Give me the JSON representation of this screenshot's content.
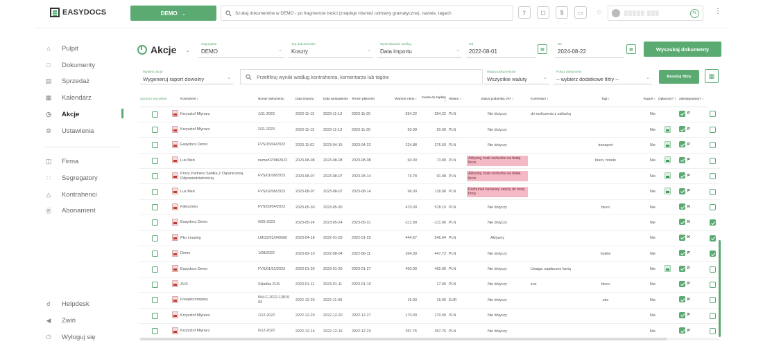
{
  "app": {
    "logo_text": "EASYDOCS"
  },
  "topbar": {
    "company_button": "DEMO",
    "search_placeholder": "Szukaj dokumentów w DEMO - po fragmencie treści (znajduje również odmiany gramatyczne), nazwie, tagach",
    "user_name": "▒▒▒▒▒ ▒▒▒",
    "user_initials": "PL"
  },
  "sidebar": {
    "items": [
      {
        "label": "Pulpit",
        "icon": "home-icon"
      },
      {
        "label": "Dokumenty",
        "icon": "folder-icon"
      },
      {
        "label": "Sprzedaż",
        "icon": "receipt-icon"
      },
      {
        "label": "Kalendarz",
        "icon": "calendar-icon"
      },
      {
        "label": "Akcje",
        "icon": "clock-icon"
      },
      {
        "label": "Ustawienia",
        "icon": "gear-icon"
      },
      {
        "label": "Firma",
        "icon": "building-icon"
      },
      {
        "label": "Segregatory",
        "icon": "grid-dots-icon"
      },
      {
        "label": "Kontrahenci",
        "icon": "people-icon"
      },
      {
        "label": "Abonament",
        "icon": "dollar-icon"
      },
      {
        "label": "Helpdesk",
        "icon": "headset-icon"
      },
      {
        "label": "Zwiń",
        "icon": "collapse-icon"
      },
      {
        "label": "Wyloguj się",
        "icon": "power-icon"
      }
    ]
  },
  "header": {
    "title": "Akcje",
    "segregator": {
      "label": "Segregator",
      "value": "DEMO"
    },
    "doc_type": {
      "label": "Typ dokumentów",
      "value": "Koszty"
    },
    "search_by": {
      "label": "Wyszukiwanie według",
      "value": "Data importu"
    },
    "date_from": {
      "label": "Od",
      "value": "2022-08-01"
    },
    "date_to": {
      "label": "Do",
      "value": "2024-08-22"
    },
    "search_button": "Wyszukaj dokumenty"
  },
  "filters": {
    "action": {
      "label": "Wybierz akcję",
      "value": "Wygeneruj raport dowolny"
    },
    "filter_placeholder": "Przefiltruj wyniki według kontrahenta, komentarza lub tagów",
    "currency": {
      "label": "Waluta dokumentów",
      "value": "Wszystkie waluty"
    },
    "show_docs": {
      "label": "Pokaż dokumenty",
      "value": "-- wybierz dodatkowe filtry --"
    },
    "reset_button": "Resetuj filtry"
  },
  "table": {
    "headers": {
      "select_all": "Zaznacz wszystkie",
      "contractor": "Kontrahent ↕",
      "doc_number": "Numer dokumentu",
      "import_date": "Data importu",
      "issue_date": "Data wystawienia",
      "due_date": "Termin płatności",
      "net": "Wartość netto ↕",
      "to_pay": "Kwota do zapłaty ↕",
      "currency": "Waluta ↕",
      "vat_status": "Status podatnika VAT ↕",
      "comment": "Komentarz ↕",
      "tags": "Tagi ↕",
      "report": "Raport ↕",
      "paid": "Opłacony? ↕",
      "booked": "Zaksięgowany? ↕"
    },
    "rows": [
      {
        "contractor": "Krzysztof Młynarz",
        "number": "1/11-2023",
        "imported": "2023-11-13",
        "issued": "2023-11-13",
        "due": "2023-11-20",
        "net": "-254.22",
        "gross": "-254.22",
        "currency": "PLN",
        "vat": "Nie dotyczy",
        "vat_alert": false,
        "comment": "do rozliczenia z zaliczką",
        "tags": "",
        "report": "Nie",
        "report_icon": false,
        "paid": "P",
        "booked": false
      },
      {
        "contractor": "Krzysztof Młynarz",
        "number": "2/11-2023",
        "imported": "2023-11-13",
        "issued": "2023-11-13",
        "due": "2023-11-20",
        "net": "50.09",
        "gross": "50.09",
        "currency": "PLN",
        "vat": "Nie dotyczy",
        "vat_alert": false,
        "comment": "",
        "tags": "",
        "report": "Nie",
        "report_icon": true,
        "paid": "P",
        "booked": false
      },
      {
        "contractor": "Easydocs Demo",
        "number": "FVS/15/04/2023",
        "imported": "2023-11-02",
        "issued": "2023-04-15",
        "due": "2023-04-22",
        "net": "224.88",
        "gross": "276.60",
        "currency": "PLN",
        "vat": "Nie dotyczy",
        "vat_alert": false,
        "comment": "",
        "tags": "transport",
        "report": "Nie",
        "report_icon": true,
        "paid": "P",
        "booked": false
      },
      {
        "contractor": "Lux Med",
        "number": "numer07/08/2023",
        "imported": "2023-08-08",
        "issued": "2023-08-08",
        "due": "2023-08-08",
        "net": "60.00",
        "gross": "73.80",
        "currency": "PLN",
        "vat": "Aktywny, brak rachunku na białej liście",
        "vat_alert": true,
        "comment": "",
        "tags": "biuro, hotele",
        "report": "Nie",
        "report_icon": true,
        "paid": "P",
        "booked": false
      },
      {
        "contractor": "Proxy Partners Spółka Z Ograniczoną Odpowiedzialnością",
        "number": "FVS/01/08/2023",
        "imported": "2023-08-07",
        "issued": "2023-08-07",
        "due": "2023-08-14",
        "net": "74.78",
        "gross": "91.98",
        "currency": "PLN",
        "vat": "Aktywny, brak rachunku na białej liście",
        "vat_alert": true,
        "comment": "",
        "tags": "",
        "report": "Nie",
        "report_icon": true,
        "paid": "P",
        "booked": false
      },
      {
        "contractor": "Lux Med",
        "number": "FVS/02/08/2023",
        "imported": "2023-08-07",
        "issued": "2023-08-07",
        "due": "2023-08-14",
        "net": "96.00",
        "gross": "118.08",
        "currency": "PLN",
        "vat": "Rachunek bankowy należy do innej firmy",
        "vat_alert": true,
        "comment": "",
        "tags": "",
        "report": "Nie",
        "report_icon": true,
        "paid": "P",
        "booked": false
      },
      {
        "contractor": "Fakturowo",
        "number": "FVS/03/04/2023",
        "imported": "2023-05-30",
        "issued": "2023-05-30",
        "due": "",
        "net": "470.00",
        "gross": "578.10",
        "currency": "PLN",
        "vat": "Nie dotyczy",
        "vat_alert": false,
        "comment": "",
        "tags": "biuro",
        "report": "Nie",
        "report_icon": false,
        "paid": "K",
        "booked": false
      },
      {
        "contractor": "Easydocs Demo",
        "number": "0/05-2023",
        "imported": "2023-05-24",
        "issued": "2023-05-24",
        "due": "2023-05-31",
        "net": "-111.90",
        "gross": "-111.90",
        "currency": "PLN",
        "vat": "Nie dotyczy",
        "vat_alert": false,
        "comment": "",
        "tags": "",
        "report": "Nie",
        "report_icon": false,
        "paid": "K",
        "booked": true
      },
      {
        "contractor": "Pko Leasing",
        "number": "LM/22/01/040566",
        "imported": "2023-04-18",
        "issued": "2022-01-03",
        "due": "2022-01-25",
        "net": "444.67",
        "gross": "546.94",
        "currency": "PLN",
        "vat": "Aktywny",
        "vat_alert": false,
        "comment": "",
        "tags": "",
        "report": "Nie",
        "report_icon": false,
        "paid": "K",
        "booked": true
      },
      {
        "contractor": "Demo",
        "number": "1/08/2022",
        "imported": "2023-02-10",
        "issued": "2022-08-04",
        "due": "2022-08-11",
        "net": "364.00",
        "gross": "447.72",
        "currency": "PLN",
        "vat": "Nie dotyczy",
        "vat_alert": false,
        "comment": "",
        "tags": "hotele",
        "report": "Nie",
        "report_icon": false,
        "paid": "P",
        "booked": true
      },
      {
        "contractor": "Easydocs Demo",
        "number": "FVS/01/01/2023",
        "imported": "2023-01-20",
        "issued": "2023-01-20",
        "due": "2023-01-27",
        "net": "400.00",
        "gross": "492.00",
        "currency": "PLN",
        "vat": "Nie dotyczy",
        "vat_alert": false,
        "comment": "Uwaga: zapłacone kartą",
        "tags": "",
        "report": "Nie",
        "report_icon": true,
        "paid": "P",
        "booked": false
      },
      {
        "contractor": "ZUS",
        "number": "Składka ZUS",
        "imported": "2023-01-11",
        "issued": "2023-01-11",
        "due": "2023-01-10",
        "net": "",
        "gross": "17.00",
        "currency": "PLN",
        "vat": "Nie dotyczy",
        "vat_alert": false,
        "comment": "zus",
        "tags": "biuro",
        "report": "Nie",
        "report_icon": false,
        "paid": "P",
        "booked": false
      },
      {
        "contractor": "Freepikcompany",
        "number": "INV-C-2022-13819 93",
        "imported": "2022-12-20",
        "issued": "2022-11-09",
        "due": "",
        "net": "15.00",
        "gross": "15.00",
        "currency": "EUR",
        "vat": "Nie dotyczy",
        "vat_alert": false,
        "comment": "",
        "tags": "abc",
        "report": "Nie",
        "report_icon": false,
        "paid": "K",
        "booked": false
      },
      {
        "contractor": "Krzysztof Młynarz",
        "number": "1/12-2022",
        "imported": "2022-12-20",
        "issued": "2022-12-20",
        "due": "2022-12-27",
        "net": "170.00",
        "gross": "170.00",
        "currency": "PLN",
        "vat": "Nie dotyczy",
        "vat_alert": false,
        "comment": "",
        "tags": "",
        "report": "Nie",
        "report_icon": false,
        "paid": "P",
        "booked": false
      },
      {
        "contractor": "Krzysztof Młynarz",
        "number": "0/12-2022",
        "imported": "2022-12-16",
        "issued": "2022-12-16",
        "due": "2022-12-23",
        "net": "397.76",
        "gross": "397.76",
        "currency": "PLN",
        "vat": "Nie dotyczy",
        "vat_alert": false,
        "comment": "",
        "tags": "",
        "report": "Nie",
        "report_icon": false,
        "paid": "P",
        "booked": false
      }
    ]
  },
  "colors": {
    "accent": "#5aaa72",
    "alert": "#f4b9c4"
  }
}
